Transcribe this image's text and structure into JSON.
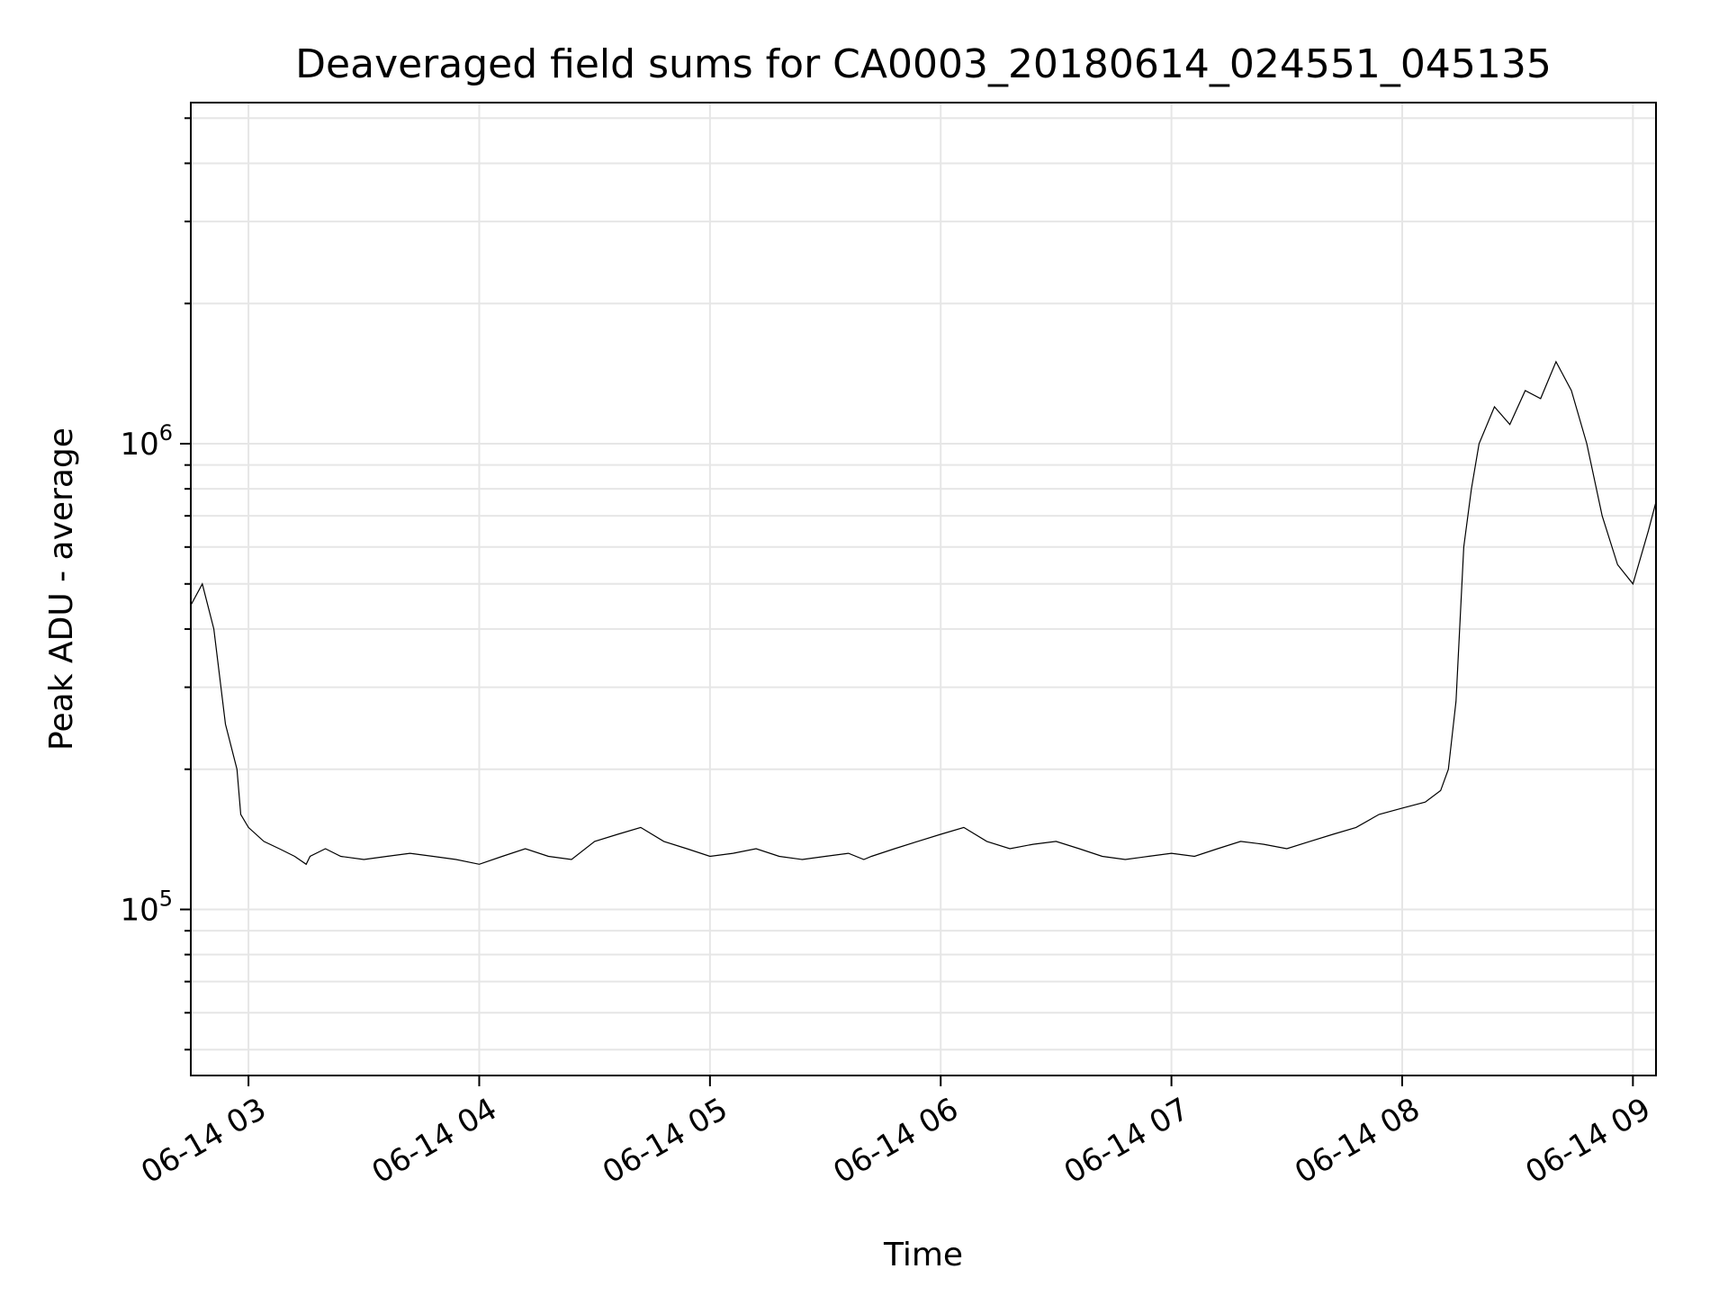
{
  "chart_data": {
    "type": "line",
    "title": "Deaveraged field sums for CA0003_20180614_024551_045135",
    "xlabel": "Time",
    "ylabel": "Peak ADU - average",
    "xlim": [
      "2018-06-14 02:45",
      "2018-06-14 09:06"
    ],
    "ylim": [
      44000,
      5400000
    ],
    "yscale": "log",
    "grid": true,
    "x_ticks": [
      {
        "label": "06-14 03",
        "value": "2018-06-14 03:00"
      },
      {
        "label": "06-14 04",
        "value": "2018-06-14 04:00"
      },
      {
        "label": "06-14 05",
        "value": "2018-06-14 05:00"
      },
      {
        "label": "06-14 06",
        "value": "2018-06-14 06:00"
      },
      {
        "label": "06-14 07",
        "value": "2018-06-14 07:00"
      },
      {
        "label": "06-14 08",
        "value": "2018-06-14 08:00"
      },
      {
        "label": "06-14 09",
        "value": "2018-06-14 09:00"
      }
    ],
    "y_ticks": [
      {
        "base": "10",
        "exp": "5",
        "value": 100000
      },
      {
        "base": "10",
        "exp": "6",
        "value": 1000000
      }
    ],
    "series": [
      {
        "color": "#000000",
        "x": [
          "2018-06-14 02:45",
          "2018-06-14 02:48",
          "2018-06-14 02:51",
          "2018-06-14 02:54",
          "2018-06-14 02:57",
          "2018-06-14 02:58",
          "2018-06-14 03:00",
          "2018-06-14 03:04",
          "2018-06-14 03:08",
          "2018-06-14 03:12",
          "2018-06-14 03:15",
          "2018-06-14 03:16",
          "2018-06-14 03:20",
          "2018-06-14 03:24",
          "2018-06-14 03:30",
          "2018-06-14 03:36",
          "2018-06-14 03:42",
          "2018-06-14 03:48",
          "2018-06-14 03:54",
          "2018-06-14 04:00",
          "2018-06-14 04:06",
          "2018-06-14 04:12",
          "2018-06-14 04:18",
          "2018-06-14 04:24",
          "2018-06-14 04:30",
          "2018-06-14 04:36",
          "2018-06-14 04:42",
          "2018-06-14 04:48",
          "2018-06-14 04:54",
          "2018-06-14 05:00",
          "2018-06-14 05:06",
          "2018-06-14 05:12",
          "2018-06-14 05:18",
          "2018-06-14 05:24",
          "2018-06-14 05:30",
          "2018-06-14 05:36",
          "2018-06-14 05:40",
          "2018-06-14 05:42",
          "2018-06-14 05:48",
          "2018-06-14 05:54",
          "2018-06-14 06:00",
          "2018-06-14 06:06",
          "2018-06-14 06:12",
          "2018-06-14 06:18",
          "2018-06-14 06:24",
          "2018-06-14 06:30",
          "2018-06-14 06:36",
          "2018-06-14 06:42",
          "2018-06-14 06:48",
          "2018-06-14 06:54",
          "2018-06-14 07:00",
          "2018-06-14 07:06",
          "2018-06-14 07:12",
          "2018-06-14 07:18",
          "2018-06-14 07:24",
          "2018-06-14 07:30",
          "2018-06-14 07:36",
          "2018-06-14 07:42",
          "2018-06-14 07:48",
          "2018-06-14 07:54",
          "2018-06-14 08:00",
          "2018-06-14 08:06",
          "2018-06-14 08:10",
          "2018-06-14 08:12",
          "2018-06-14 08:14",
          "2018-06-14 08:16",
          "2018-06-14 08:18",
          "2018-06-14 08:20",
          "2018-06-14 08:24",
          "2018-06-14 08:28",
          "2018-06-14 08:32",
          "2018-06-14 08:36",
          "2018-06-14 08:40",
          "2018-06-14 08:44",
          "2018-06-14 08:48",
          "2018-06-14 08:52",
          "2018-06-14 08:56",
          "2018-06-14 09:00",
          "2018-06-14 09:04",
          "2018-06-14 09:06"
        ],
        "y": [
          450000,
          500000,
          400000,
          250000,
          200000,
          160000,
          150000,
          140000,
          135000,
          130000,
          125000,
          130000,
          135000,
          130000,
          128000,
          130000,
          132000,
          130000,
          128000,
          125000,
          130000,
          135000,
          130000,
          128000,
          140000,
          145000,
          150000,
          140000,
          135000,
          130000,
          132000,
          135000,
          130000,
          128000,
          130000,
          132000,
          128000,
          130000,
          135000,
          140000,
          145000,
          150000,
          140000,
          135000,
          138000,
          140000,
          135000,
          130000,
          128000,
          130000,
          132000,
          130000,
          135000,
          140000,
          138000,
          135000,
          140000,
          145000,
          150000,
          160000,
          165000,
          170000,
          180000,
          200000,
          280000,
          600000,
          800000,
          1000000,
          1200000,
          1100000,
          1300000,
          1250000,
          1500000,
          1300000,
          1000000,
          700000,
          550000,
          500000,
          650000,
          750000
        ]
      }
    ]
  }
}
